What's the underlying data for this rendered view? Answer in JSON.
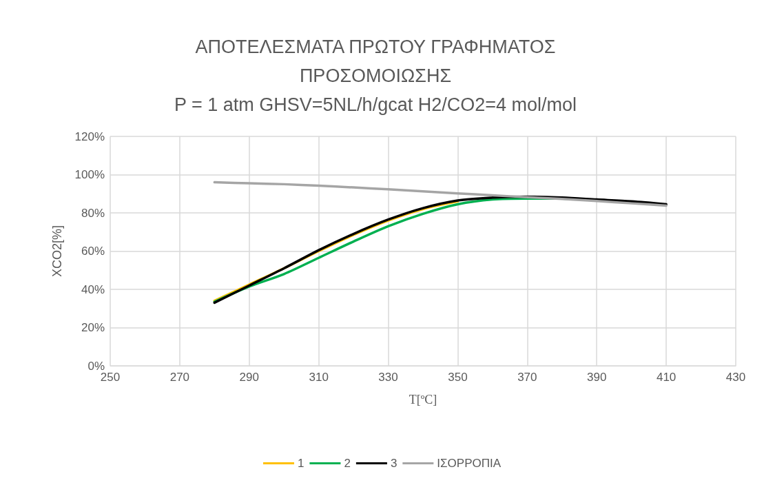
{
  "chart_data": {
    "type": "line",
    "title": "ΑΠΟΤΕΛΕΣΜΑΤΑ ΠΡΩΤΟΥ ΓΡΑΦΗΜΑΤΟΣ\nΠΡΟΣΟΜΟΙΩΣΗΣ\nP = 1 atm GHSV=5NL/h/gcat H2/CO2=4 mol/mol",
    "xlabel": "T[ºC]",
    "ylabel": "XCO2[%]",
    "x": [
      280,
      290,
      300,
      310,
      320,
      330,
      340,
      350,
      360,
      370,
      380,
      390,
      400,
      410
    ],
    "series": [
      {
        "name": "1",
        "color": "#ffc000",
        "values": [
          34,
          42.5,
          51,
          60,
          68.5,
          76,
          82,
          86,
          null,
          null,
          null,
          null,
          null,
          null
        ]
      },
      {
        "name": "2",
        "color": "#00b050",
        "values": [
          33.5,
          41.5,
          48,
          56.5,
          65,
          73,
          79.5,
          84.5,
          87,
          87.5,
          87.5,
          86.5,
          null,
          null
        ]
      },
      {
        "name": "3",
        "color": "#000000",
        "values": [
          33,
          42,
          51,
          60.5,
          69,
          76.5,
          82.5,
          86.5,
          88,
          88.5,
          88,
          87,
          86,
          84.5
        ]
      },
      {
        "name": "ΙΣΟΡΡΟΠΙΑ",
        "color": "#a5a5a5",
        "values": [
          96,
          95.5,
          95,
          94.2,
          93.3,
          92.3,
          91.3,
          90.2,
          89.2,
          88.2,
          87.3,
          86.2,
          85,
          83.8
        ]
      }
    ],
    "xlim": [
      250,
      430
    ],
    "xticks": [
      250,
      270,
      290,
      310,
      330,
      350,
      370,
      390,
      410,
      430
    ],
    "ylim": [
      0,
      120
    ],
    "yticks": [
      {
        "value": 0,
        "label": "0%"
      },
      {
        "value": 20,
        "label": "20%"
      },
      {
        "value": 40,
        "label": "40%"
      },
      {
        "value": 60,
        "label": "60%"
      },
      {
        "value": 80,
        "label": "80%"
      },
      {
        "value": 100,
        "label": "100%"
      },
      {
        "value": 120,
        "label": "120%"
      }
    ],
    "grid": true,
    "legend": "bottom",
    "marker": "none",
    "line_style": "solid"
  }
}
